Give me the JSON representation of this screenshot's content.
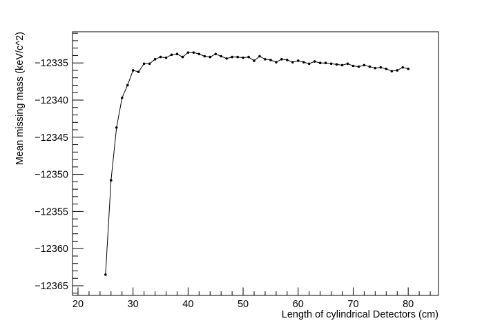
{
  "chart_data": {
    "type": "line",
    "title": "",
    "xlabel": "Length of cylindrical Detectors (cm)",
    "ylabel": "Mean missing mass (keV/c^2)",
    "xlim": [
      19,
      85.5
    ],
    "ylim": [
      -12366.3,
      -12330.8
    ],
    "x_ticks": [
      20,
      30,
      40,
      50,
      60,
      70,
      80
    ],
    "x_tick_labels": [
      "20",
      "30",
      "40",
      "50",
      "60",
      "70",
      "80"
    ],
    "y_ticks": [
      -12365,
      -12360,
      -12355,
      -12350,
      -12345,
      -12340,
      -12335
    ],
    "y_tick_labels": [
      "−12365",
      "−12360",
      "−12355",
      "−12350",
      "−12345",
      "−12340",
      "−12335"
    ],
    "grid": false,
    "legend": "none",
    "marker": "dot",
    "line_color": "#000000",
    "series": [
      {
        "x": [
          25,
          26,
          27,
          28,
          29,
          30,
          31,
          32,
          33,
          34,
          35,
          36,
          37,
          38,
          39,
          40,
          41,
          42,
          43,
          44,
          45,
          46,
          47,
          48,
          49,
          50,
          51,
          52,
          53,
          54,
          55,
          56,
          57,
          58,
          59,
          60,
          61,
          62,
          63,
          64,
          65,
          66,
          67,
          68,
          69,
          70,
          71,
          72,
          73,
          74,
          75,
          76,
          77,
          78,
          79,
          80
        ],
        "values": [
          -12363.5,
          -12350.8,
          -12343.7,
          -12339.7,
          -12338.0,
          -12336.0,
          -12336.2,
          -12335.1,
          -12335.1,
          -12334.5,
          -12334.2,
          -12334.3,
          -12333.9,
          -12333.8,
          -12334.2,
          -12333.6,
          -12333.6,
          -12333.8,
          -12334.1,
          -12334.2,
          -12333.8,
          -12334.1,
          -12334.4,
          -12334.2,
          -12334.2,
          -12334.3,
          -12334.2,
          -12334.7,
          -12334.1,
          -12334.5,
          -12334.6,
          -12334.9,
          -12334.5,
          -12334.6,
          -12334.9,
          -12334.7,
          -12334.9,
          -12335.1,
          -12334.8,
          -12335.0,
          -12335.0,
          -12335.1,
          -12335.2,
          -12335.3,
          -12335.1,
          -12335.4,
          -12335.5,
          -12335.3,
          -12335.5,
          -12335.7,
          -12335.6,
          -12335.8,
          -12336.1,
          -12336.0,
          -12335.6,
          -12335.8
        ]
      }
    ]
  }
}
